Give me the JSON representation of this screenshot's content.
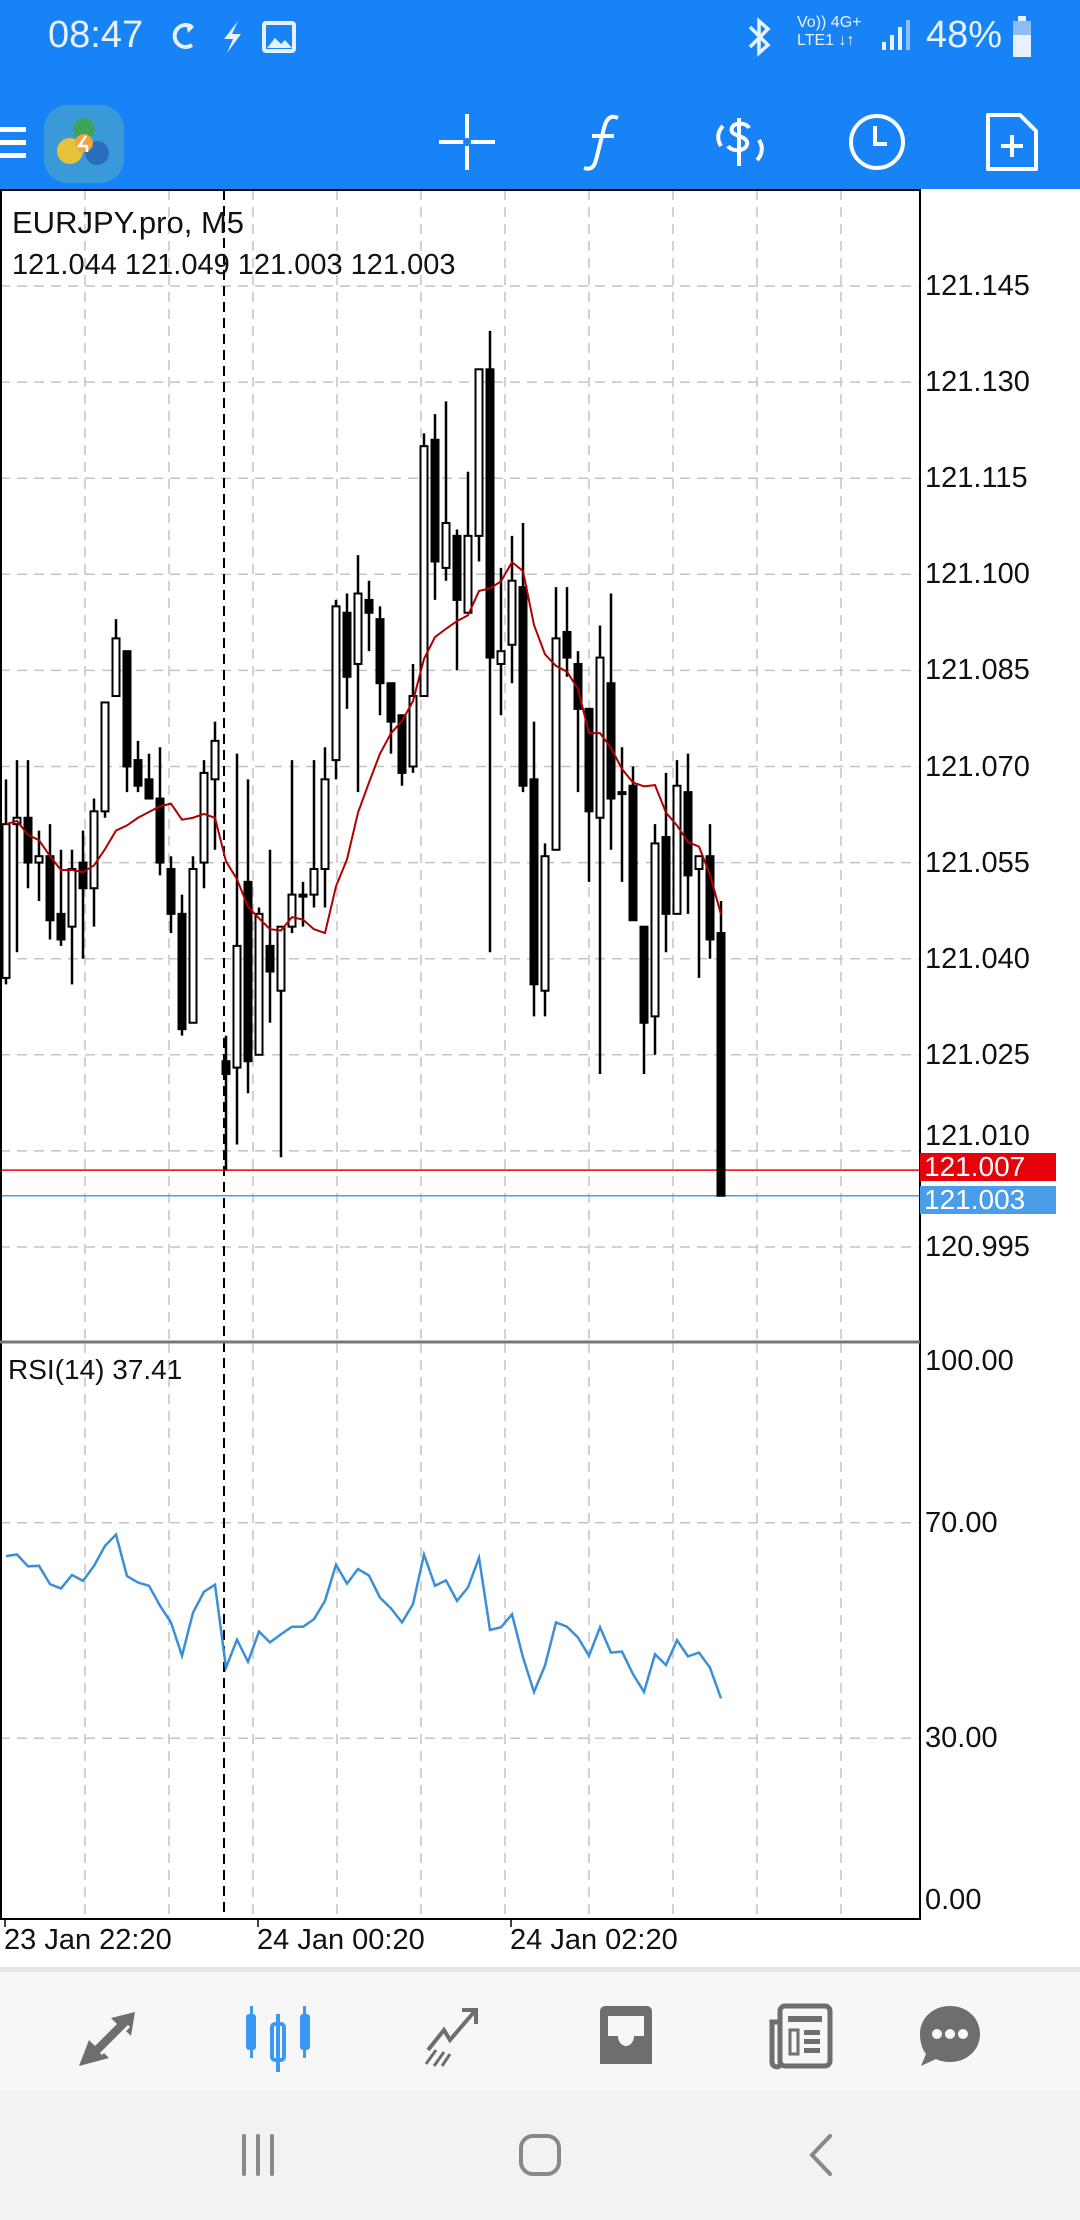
{
  "status_bar": {
    "time": "08:47",
    "battery": "48%",
    "network_top": "Vo)) 4G+",
    "network_bottom": "LTE1 ↓↑"
  },
  "toolbar": {
    "icons": [
      "menu-icon",
      "metatrader-logo",
      "crosshair-icon",
      "indicators-icon",
      "trade-icon",
      "timeframe-clock-icon",
      "new-order-icon"
    ],
    "accent": "#1783f6"
  },
  "chart": {
    "symbol_title": "EURJPY.pro, M5",
    "ohlc_text": "121.044 121.049 121.003 121.003",
    "price_labels": [
      "121.145",
      "121.130",
      "121.115",
      "121.100",
      "121.085",
      "121.070",
      "121.055",
      "121.040",
      "121.025",
      "121.010",
      "120.995"
    ],
    "bid_price": "121.007",
    "ask_price": "121.003",
    "bid_color": "#e8000b",
    "ask_color": "#4a9de8",
    "rsi_title": "RSI(14) 37.41",
    "rsi_labels": [
      "100.00",
      "70.00",
      "30.00",
      "0.00"
    ],
    "time_labels": [
      "23 Jan 22:20",
      "24 Jan 00:20",
      "24 Jan 02:20"
    ]
  },
  "chart_data": [
    {
      "type": "candlestick",
      "ylim": [
        120.986,
        121.16
      ],
      "ma_color": "#b00000",
      "separator_candle_index": 20,
      "time_tick_candle_index": [
        0,
        23,
        46
      ],
      "ohlc": [
        [
          121.037,
          121.068,
          121.036,
          121.061
        ],
        [
          121.061,
          121.071,
          121.041,
          121.062
        ],
        [
          121.062,
          121.071,
          121.051,
          121.055
        ],
        [
          121.055,
          121.06,
          121.049,
          121.056
        ],
        [
          121.056,
          121.061,
          121.043,
          121.046
        ],
        [
          121.047,
          121.057,
          121.042,
          121.043
        ],
        [
          121.045,
          121.057,
          121.036,
          121.054
        ],
        [
          121.055,
          121.06,
          121.04,
          121.051
        ],
        [
          121.051,
          121.065,
          121.045,
          121.063
        ],
        [
          121.063,
          121.08,
          121.062,
          121.08
        ],
        [
          121.081,
          121.093,
          121.081,
          121.09
        ],
        [
          121.088,
          121.088,
          121.066,
          121.07
        ],
        [
          121.071,
          121.074,
          121.066,
          121.067
        ],
        [
          121.068,
          121.072,
          121.065,
          121.065
        ],
        [
          121.065,
          121.073,
          121.053,
          121.055
        ],
        [
          121.054,
          121.056,
          121.044,
          121.047
        ],
        [
          121.047,
          121.05,
          121.028,
          121.029
        ],
        [
          121.03,
          121.056,
          121.03,
          121.054
        ],
        [
          121.055,
          121.071,
          121.051,
          121.069
        ],
        [
          121.068,
          121.077,
          121.057,
          121.074
        ],
        [
          121.024,
          121.028,
          121.007,
          121.022
        ],
        [
          121.023,
          121.072,
          121.011,
          121.042
        ],
        [
          121.052,
          121.068,
          121.019,
          121.024
        ],
        [
          121.025,
          121.048,
          121.025,
          121.047
        ],
        [
          121.042,
          121.057,
          121.03,
          121.038
        ],
        [
          121.035,
          121.045,
          121.009,
          121.045
        ],
        [
          121.045,
          121.071,
          121.044,
          121.05
        ],
        [
          121.05,
          121.052,
          121.045,
          121.05
        ],
        [
          121.05,
          121.071,
          121.048,
          121.054
        ],
        [
          121.054,
          121.073,
          121.048,
          121.068
        ],
        [
          121.071,
          121.096,
          121.068,
          121.095
        ],
        [
          121.094,
          121.097,
          121.079,
          121.084
        ],
        [
          121.086,
          121.103,
          121.066,
          121.097
        ],
        [
          121.096,
          121.099,
          121.088,
          121.094
        ],
        [
          121.093,
          121.095,
          121.078,
          121.083
        ],
        [
          121.083,
          121.083,
          121.072,
          121.077
        ],
        [
          121.078,
          121.078,
          121.067,
          121.069
        ],
        [
          121.07,
          121.086,
          121.069,
          121.081
        ],
        [
          121.081,
          121.122,
          121.081,
          121.12
        ],
        [
          121.121,
          121.125,
          121.096,
          121.102
        ],
        [
          121.101,
          121.127,
          121.099,
          121.108
        ],
        [
          121.106,
          121.107,
          121.085,
          121.096
        ],
        [
          121.094,
          121.116,
          121.094,
          121.106
        ],
        [
          121.106,
          121.132,
          121.102,
          121.132
        ],
        [
          121.132,
          121.138,
          121.041,
          121.087
        ],
        [
          121.086,
          121.101,
          121.078,
          121.088
        ],
        [
          121.089,
          121.106,
          121.083,
          121.099
        ],
        [
          121.098,
          121.108,
          121.066,
          121.067
        ],
        [
          121.068,
          121.077,
          121.031,
          121.036
        ],
        [
          121.035,
          121.058,
          121.031,
          121.056
        ],
        [
          121.057,
          121.098,
          121.057,
          121.09
        ],
        [
          121.091,
          121.098,
          121.084,
          121.087
        ],
        [
          121.086,
          121.088,
          121.066,
          121.079
        ],
        [
          121.079,
          121.079,
          121.052,
          121.063
        ],
        [
          121.062,
          121.092,
          121.022,
          121.087
        ],
        [
          121.083,
          121.097,
          121.057,
          121.065
        ],
        [
          121.066,
          121.073,
          121.052,
          121.066
        ],
        [
          121.067,
          121.07,
          121.046,
          121.046
        ],
        [
          121.045,
          121.045,
          121.022,
          121.03
        ],
        [
          121.031,
          121.061,
          121.025,
          121.058
        ],
        [
          121.059,
          121.069,
          121.041,
          121.047
        ],
        [
          121.047,
          121.071,
          121.047,
          121.067
        ],
        [
          121.066,
          121.072,
          121.047,
          121.053
        ],
        [
          121.054,
          121.056,
          121.037,
          121.056
        ],
        [
          121.056,
          121.061,
          121.04,
          121.043
        ],
        [
          121.044,
          121.049,
          121.003,
          121.003
        ]
      ]
    },
    {
      "type": "line",
      "name": "RSI(14)",
      "ylim": [
        0,
        100
      ],
      "levels": [
        70,
        30
      ],
      "color": "#3a8fd6",
      "values": [
        63.8,
        64.1,
        61.9,
        62.0,
        58.6,
        57.8,
        60.3,
        59.2,
        62.0,
        65.7,
        67.8,
        60.1,
        58.9,
        58.3,
        54.6,
        51.5,
        45.3,
        53.3,
        57.2,
        58.5,
        43.1,
        48.3,
        44.2,
        49.8,
        47.8,
        49.3,
        50.7,
        50.7,
        52.1,
        55.5,
        62.2,
        58.7,
        61.4,
        60.2,
        56.1,
        54.1,
        51.5,
        54.9,
        64.1,
        58.3,
        59.3,
        55.5,
        58.0,
        63.5,
        50.1,
        50.6,
        53.0,
        45.0,
        38.6,
        43.5,
        51.5,
        50.7,
        48.7,
        45.3,
        50.6,
        45.9,
        46.1,
        41.9,
        38.6,
        45.6,
        43.6,
        48.2,
        45.2,
        45.9,
        43.1,
        37.41
      ]
    }
  ],
  "bottom_nav": {
    "icons": [
      "quotes-icon",
      "chart-icon",
      "trade-icon",
      "history-icon",
      "news-icon",
      "chat-icon"
    ],
    "active_color": "#3d98f5",
    "inactive_color": "#6e6e6e"
  },
  "system_nav": {
    "icons": [
      "recents-icon",
      "home-icon",
      "back-icon"
    ]
  }
}
